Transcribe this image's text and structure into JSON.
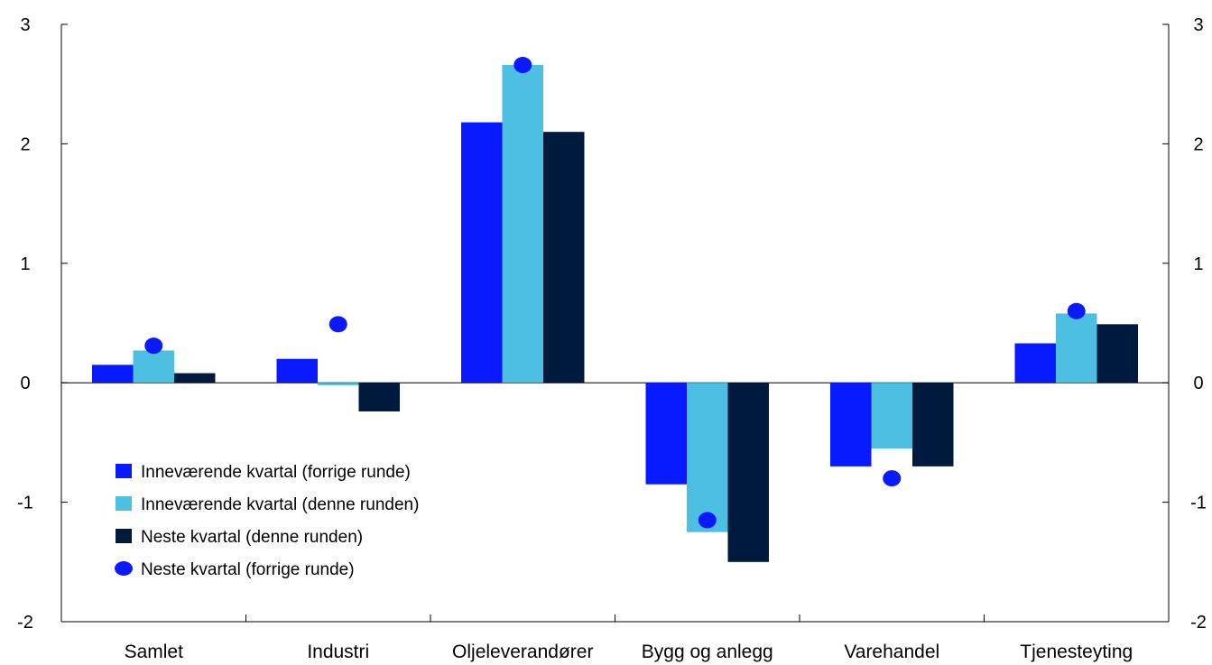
{
  "chart_data": {
    "type": "bar",
    "title": "",
    "xlabel": "",
    "ylabel": "",
    "ylim": [
      -2,
      3
    ],
    "yticks": [
      "3",
      "2",
      "1",
      "0",
      "-1",
      "-2"
    ],
    "ytick_values": [
      3,
      2,
      1,
      0,
      -1,
      -2
    ],
    "grid": false,
    "legend_position": "bottom-left",
    "categories": [
      "Samlet",
      "Industri",
      "Oljeleverandører",
      "Bygg og anlegg",
      "Varehandel",
      "Tjenesteyting"
    ],
    "series": [
      {
        "name": "Inneværende kvartal (forrige runde)",
        "kind": "bar",
        "color": "#0a1aff",
        "values": [
          0.15,
          0.2,
          2.18,
          -0.85,
          -0.7,
          0.33
        ]
      },
      {
        "name": "Inneværende kvartal (denne runden)",
        "kind": "bar",
        "color": "#4dbfe3",
        "values": [
          0.27,
          -0.02,
          2.66,
          -1.25,
          -0.55,
          0.58
        ]
      },
      {
        "name": "Neste kvartal (denne runden)",
        "kind": "bar",
        "color": "#001a3d",
        "values": [
          0.08,
          -0.24,
          2.1,
          -1.5,
          -0.7,
          0.49
        ]
      },
      {
        "name": "Neste kvartal (forrige runde)",
        "kind": "point",
        "color": "#0a1aff",
        "values": [
          0.31,
          0.49,
          2.66,
          -1.15,
          -0.8,
          0.6
        ]
      }
    ]
  }
}
